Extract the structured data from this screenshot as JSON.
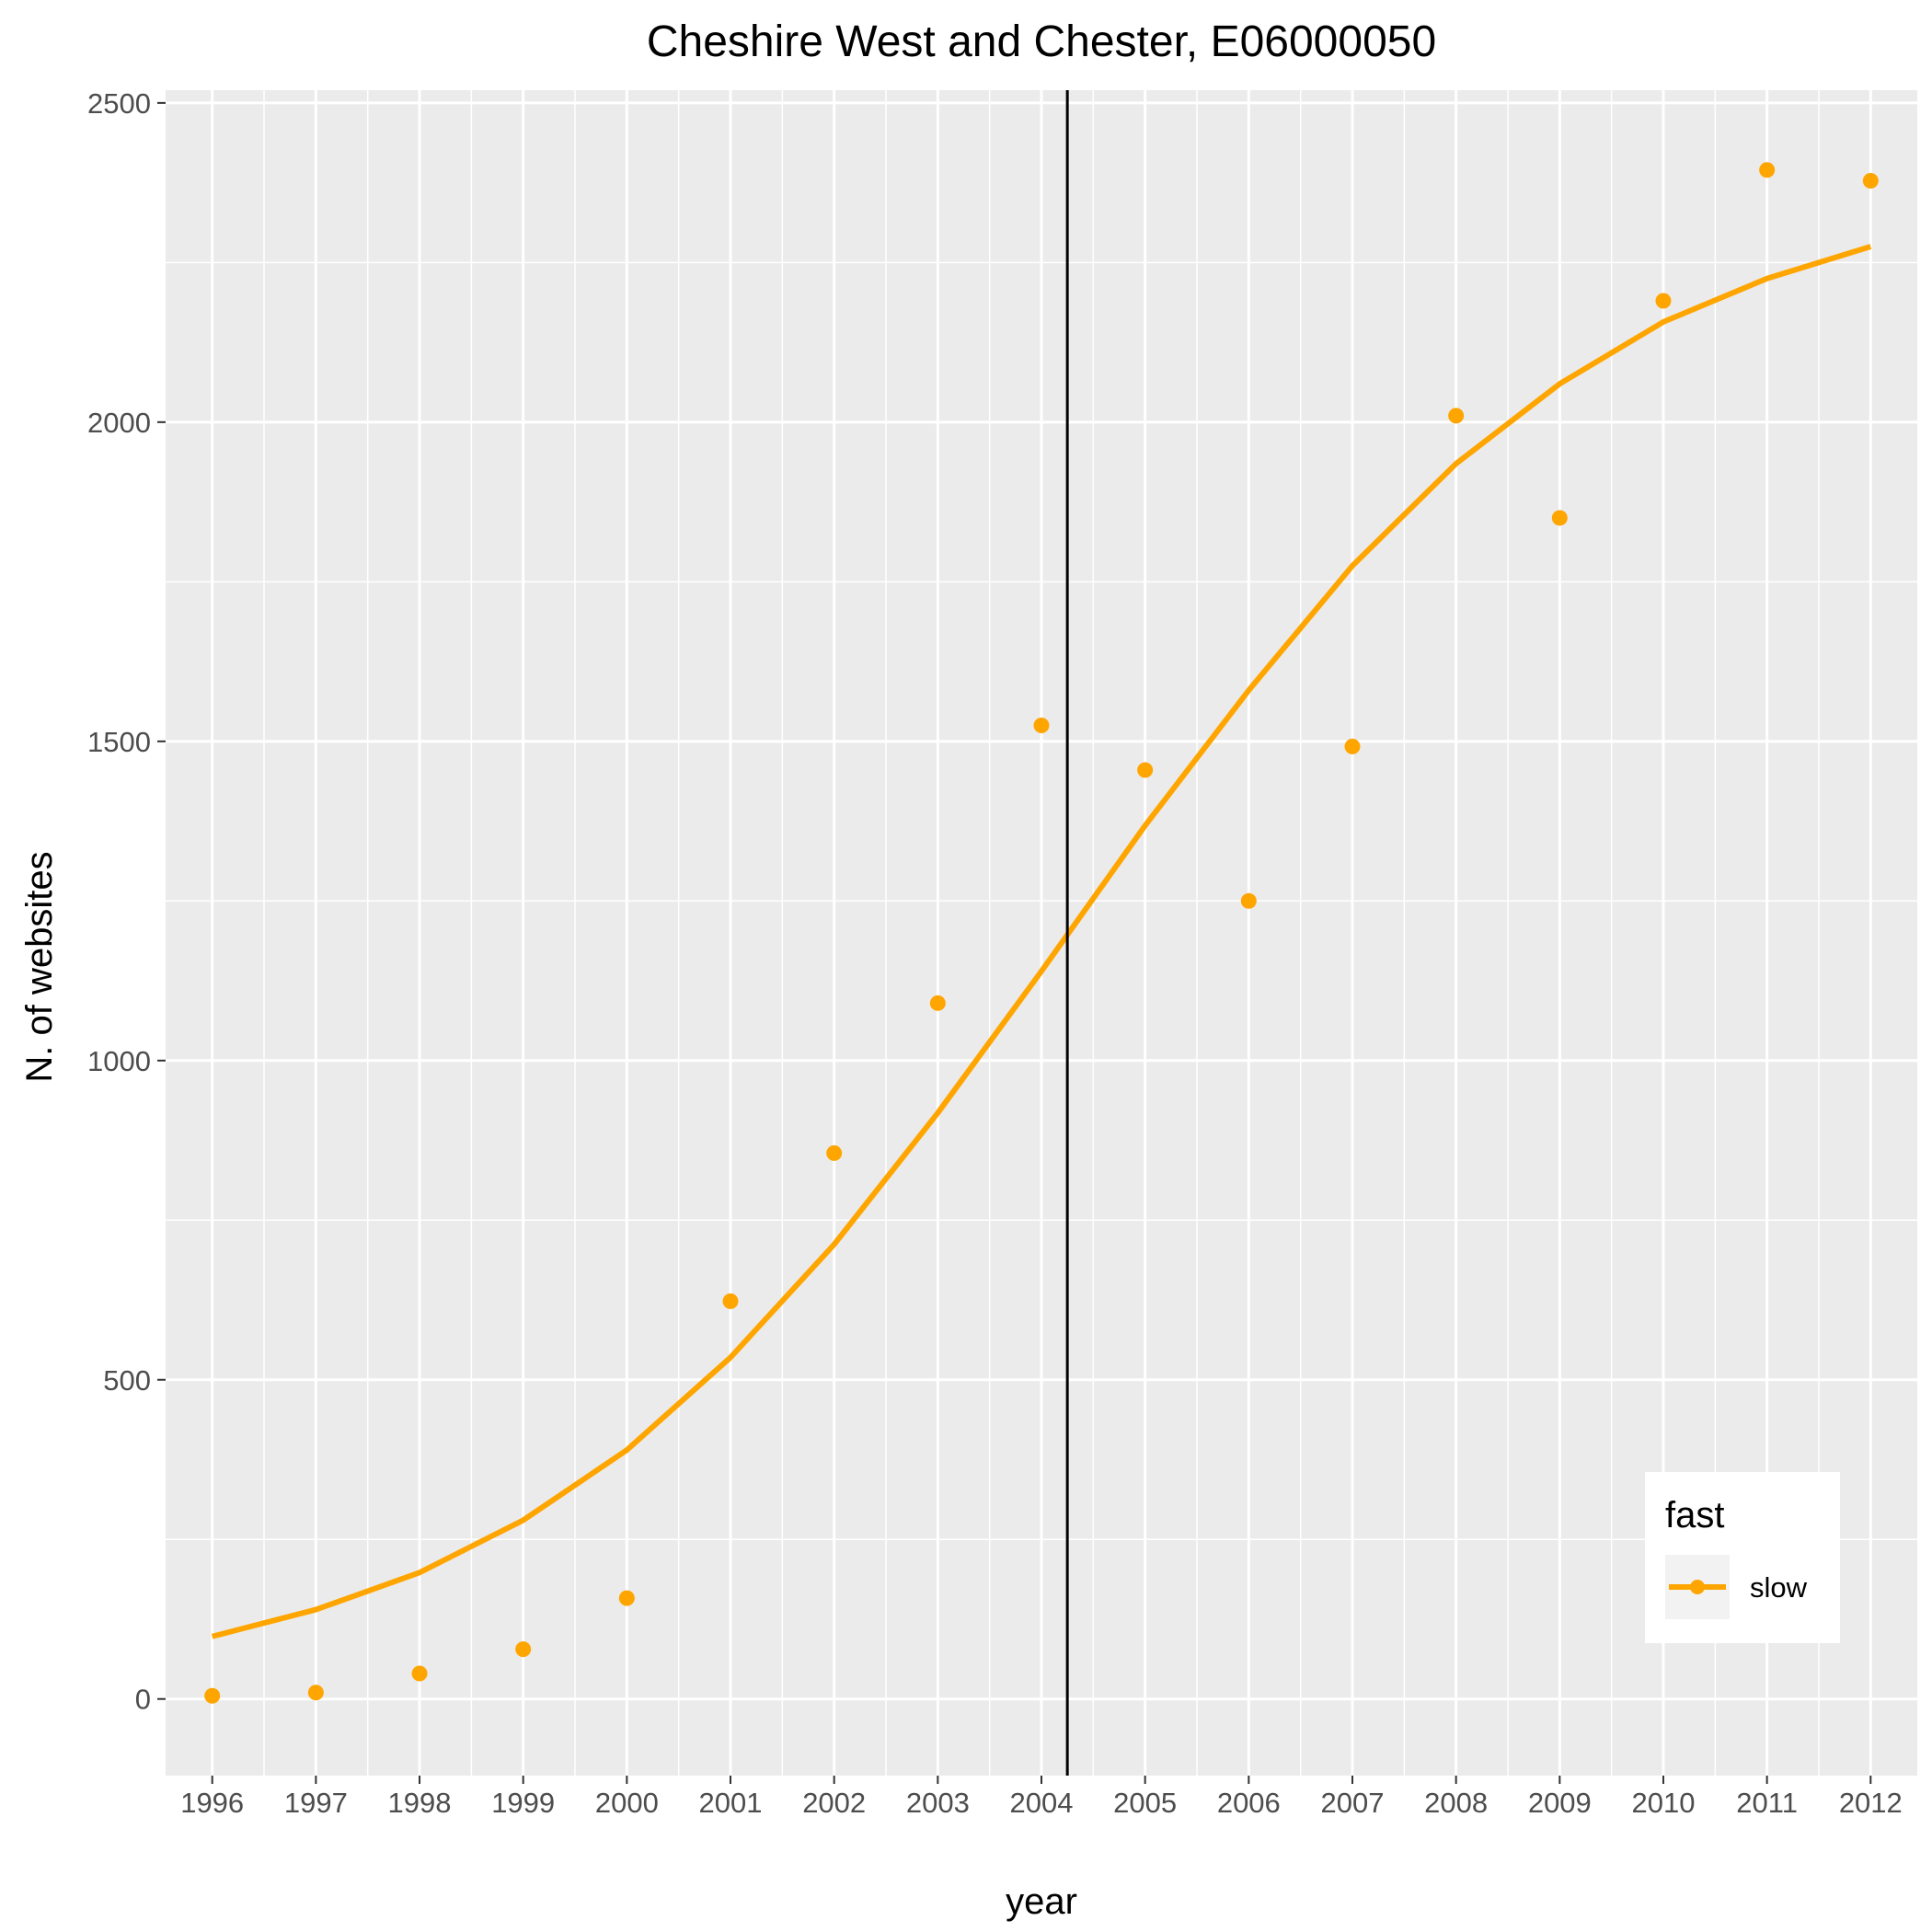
{
  "chart_data": {
    "type": "scatter",
    "title": "Cheshire West and Chester, E06000050",
    "xlabel": "year",
    "ylabel": "N. of websites",
    "x": [
      1996,
      1997,
      1998,
      1999,
      2000,
      2001,
      2002,
      2003,
      2004,
      2005,
      2006,
      2007,
      2008,
      2009,
      2010,
      2011,
      2012
    ],
    "xlim": [
      1995.55,
      2012.45
    ],
    "ylim": [
      -120,
      2520
    ],
    "yticks": [
      0,
      500,
      1000,
      1500,
      2000,
      2500
    ],
    "series": [
      {
        "name": "slow",
        "color": "#FFA500",
        "points": [
          5,
          10,
          40,
          78,
          158,
          623,
          855,
          1090,
          1525,
          1455,
          1250,
          1492,
          2010,
          1850,
          2190,
          2395,
          2378
        ],
        "trend": [
          98,
          140,
          198,
          280,
          390,
          535,
          712,
          918,
          1140,
          1368,
          1580,
          1775,
          1935,
          2060,
          2157,
          2225,
          2275
        ]
      }
    ],
    "vline": {
      "x": 2004.25,
      "color": "#000000"
    },
    "legend": {
      "title": "fast",
      "position": "bottom-right",
      "labels": [
        "slow"
      ]
    },
    "colors": {
      "panel": "#EBEBEB",
      "grid": "#FFFFFF",
      "tick_text": "#4D4D4D"
    },
    "grid": true
  }
}
